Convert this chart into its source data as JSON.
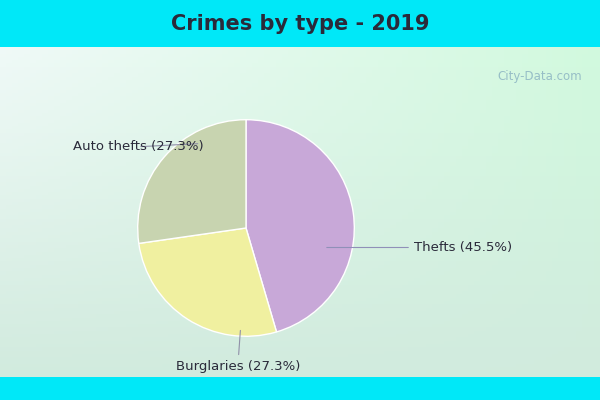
{
  "title": "Crimes by type - 2019",
  "slices": [
    {
      "label": "Thefts (45.5%)",
      "value": 45.5,
      "color": "#c8a8d8"
    },
    {
      "label": "Auto thefts (27.3%)",
      "value": 27.3,
      "color": "#f0f0a0"
    },
    {
      "label": "Burglaries (27.3%)",
      "value": 27.3,
      "color": "#c8d4b0"
    }
  ],
  "bg_cyan": "#00e8f8",
  "bg_main": "#d0ece0",
  "title_fontsize": 15,
  "label_fontsize": 9.5,
  "watermark": "City-Data.com",
  "title_color": "#2a2a3a",
  "label_color": "#2a2a3a",
  "start_angle": 90,
  "top_bar_height": 0.118,
  "bottom_bar_height": 0.058
}
